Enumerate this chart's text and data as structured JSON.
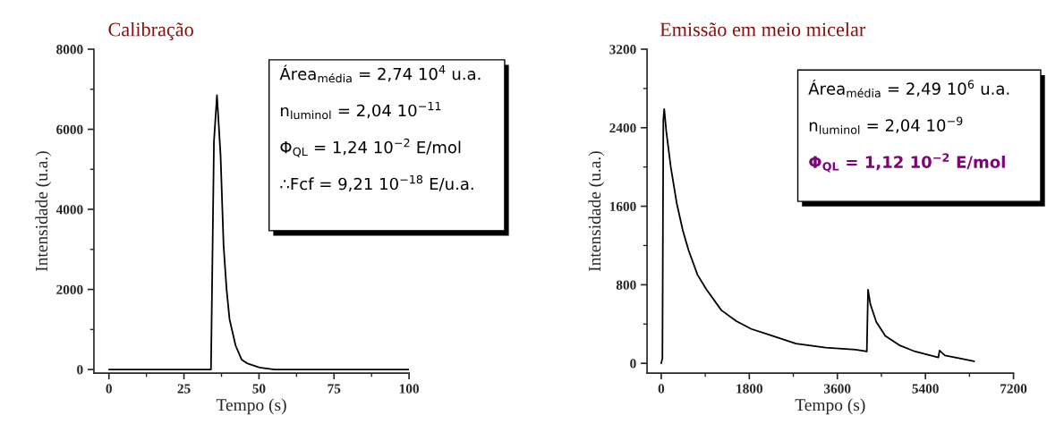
{
  "chart_data": [
    {
      "type": "line",
      "title": "Calibração",
      "xlabel": "Tempo (s)",
      "ylabel": "Intensidade (u.a.)",
      "xlim": [
        -5,
        100
      ],
      "xticks": [
        0,
        25,
        50,
        75,
        100
      ],
      "ylim": [
        -90,
        8000
      ],
      "yticks": [
        0,
        2000,
        4000,
        6000,
        8000
      ],
      "marker": "none",
      "line_style": "solid",
      "series": [
        {
          "color": "#000000",
          "x": [
            0,
            5,
            10,
            15,
            20,
            25,
            30,
            33,
            34,
            35,
            36,
            37.2,
            38.2,
            39.2,
            40.2,
            42.2,
            44.2,
            46.2,
            50.2,
            55.2,
            60,
            65,
            70,
            75,
            80,
            85,
            90,
            95,
            100
          ],
          "values": [
            0,
            0,
            0,
            0,
            0,
            0,
            0,
            0,
            0,
            5700,
            6850,
            5350,
            3100,
            2000,
            1250,
            600,
            250,
            150,
            50,
            0,
            0,
            0,
            0,
            0,
            0,
            0,
            0,
            0,
            0
          ]
        }
      ],
      "annotations": [
        {
          "text": "Área$_{média}$ = 2,74 10$^{4}$ u.a."
        },
        {
          "text": "n$_{luminol}$ = 2,04 10$^{−11}$"
        },
        {
          "text": "Φ$_{QL}$ = 1,24 10$^{−2}$ E/mol"
        },
        {
          "text": "∴Fcf = 9,21 10$^{−18}$ E/u.a."
        }
      ]
    },
    {
      "type": "line",
      "title": "Emissão em meio micelar",
      "xlabel": "Tempo (s)",
      "ylabel": "Intensidade (u.a.)",
      "xlim": [
        -290,
        7200
      ],
      "xticks": [
        0,
        1800,
        3600,
        5400,
        7200
      ],
      "ylim": [
        -100,
        3200
      ],
      "yticks": [
        0,
        800,
        1600,
        2400,
        3200
      ],
      "marker": "none",
      "line_style": "solid",
      "series": [
        {
          "color": "#000000",
          "x": [
            0,
            24,
            43,
            61,
            104,
            195,
            317,
            438,
            560,
            743,
            926,
            1230,
            1535,
            1840,
            2144,
            2753,
            3362,
            3970,
            4202,
            4227,
            4275,
            4397,
            4580,
            4885,
            5189,
            5664,
            5689,
            5798,
            6102,
            6395
          ],
          "values": [
            0,
            50,
            2480,
            2590,
            2360,
            2000,
            1630,
            1360,
            1150,
            900,
            750,
            540,
            430,
            350,
            300,
            200,
            160,
            140,
            120,
            750,
            600,
            420,
            280,
            180,
            120,
            60,
            130,
            80,
            50,
            20
          ]
        }
      ],
      "annotations": [
        {
          "text": "Área$_{média}$ = 2,49 10$^{6}$ u.a."
        },
        {
          "text": "n$_{luminol}$ = 2,04 10$^{−9}$"
        },
        {
          "text": "Φ$_{QL}$ = 1,12 10$^{−2}$ E/mol"
        }
      ]
    }
  ]
}
